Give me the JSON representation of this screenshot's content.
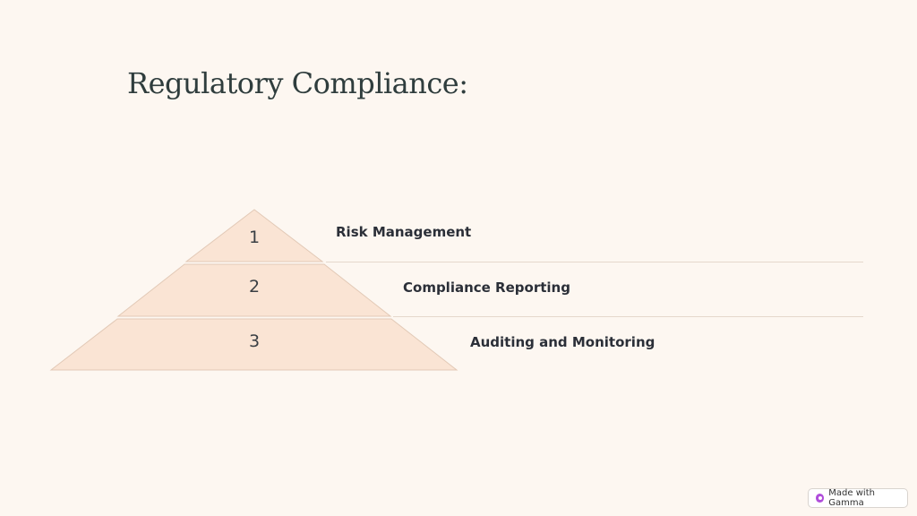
{
  "slide": {
    "title": "Regulatory Compliance:"
  },
  "pyramid": {
    "tiers": [
      {
        "number": "1",
        "label": "Risk Management"
      },
      {
        "number": "2",
        "label": "Compliance Reporting"
      },
      {
        "number": "3",
        "label": "Auditing and Monitoring"
      }
    ],
    "fill_color": "#fae4d4",
    "stroke_color": "#e2c9b6"
  },
  "badge": {
    "label": "Made with Gamma",
    "icon": "gamma-logo-icon",
    "icon_color": "#b04ddb"
  },
  "colors": {
    "background": "#fdf7f1",
    "title": "#2f3d3d",
    "label": "#2b2f38"
  }
}
